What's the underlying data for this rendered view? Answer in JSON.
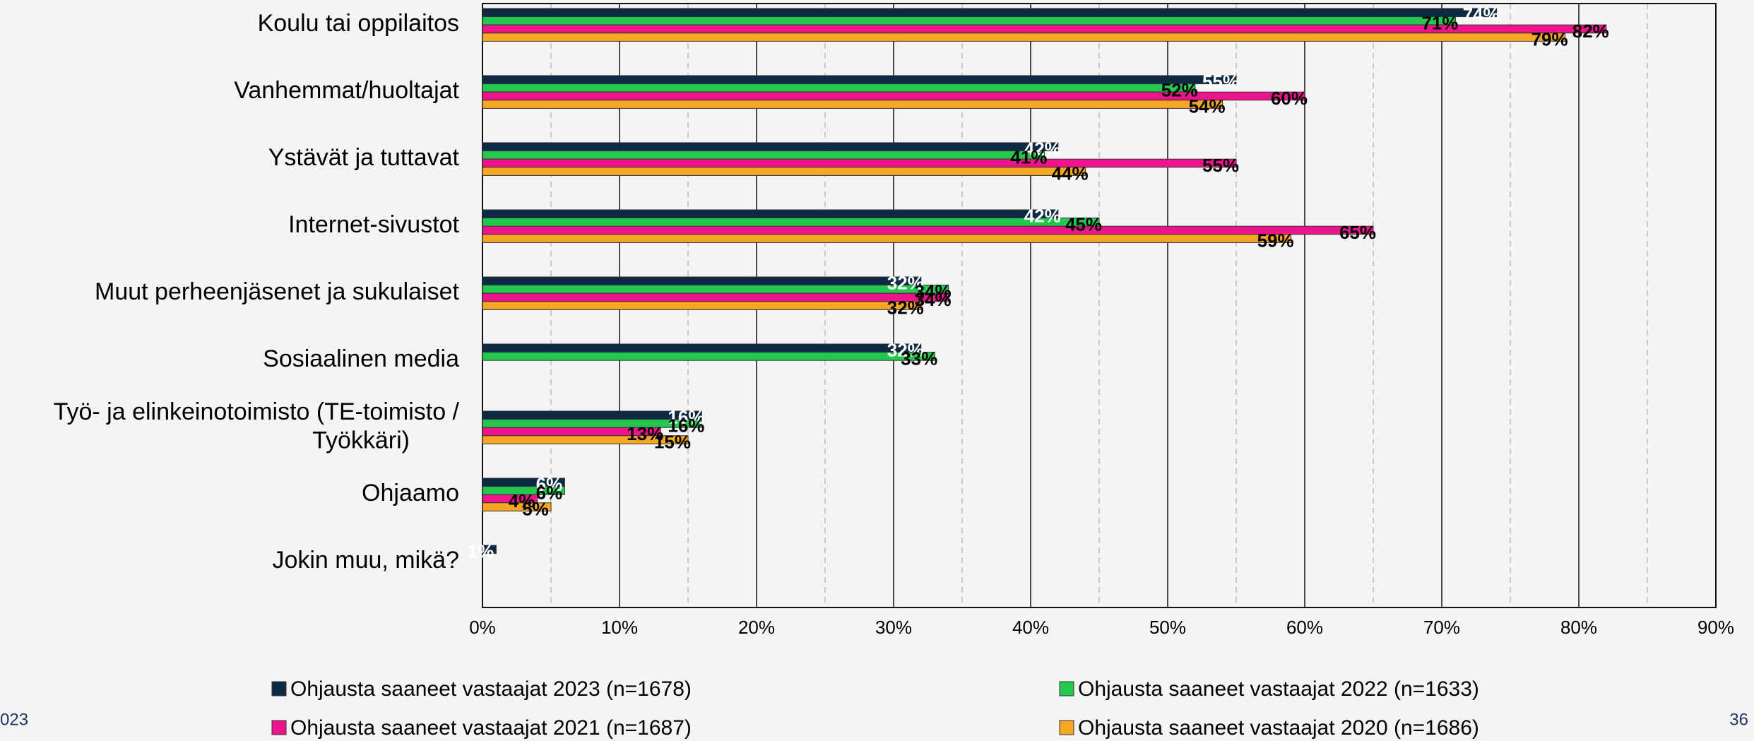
{
  "chart_data": {
    "type": "hbar",
    "categories": [
      "Koulu tai oppilaitos",
      "Vanhemmat/huoltajat",
      "Ystävät ja tuttavat",
      "Internet-sivustot",
      "Muut perheenjäsenet ja sukulaiset",
      "Sosiaalinen media",
      "Työ- ja elinkeinotoimisto (TE-toimisto / Työkkäri)",
      "Ohjaamo",
      "Jokin muu, mikä?"
    ],
    "series": [
      {
        "name": "Ohjausta saaneet vastaajat 2023 (n=1678)",
        "color": "#0d2a45",
        "label_color": "#ffffff",
        "values": [
          74,
          55,
          42,
          42,
          32,
          32,
          16,
          6,
          1
        ],
        "value_labels": [
          "74%",
          "55%",
          "42%",
          "42%",
          "32%",
          "32%",
          "16%",
          "6%",
          "1%"
        ]
      },
      {
        "name": "Ohjausta saaneet vastaajat 2022 (n=1633)",
        "color": "#22c94e",
        "label_color": "#000000",
        "values": [
          71,
          52,
          41,
          45,
          34,
          33,
          16,
          6,
          null
        ],
        "value_labels": [
          "71%",
          "52%",
          "41%",
          "45%",
          "34%",
          "33%",
          "16%",
          "6%",
          null
        ]
      },
      {
        "name": "Ohjausta saaneet vastaajat 2021 (n=1687)",
        "color": "#f0148c",
        "label_color": "#000000",
        "values": [
          82,
          60,
          55,
          65,
          34,
          null,
          13,
          4,
          null
        ],
        "value_labels": [
          "82%",
          "60%",
          "55%",
          "65%",
          "34%",
          null,
          "13%",
          "4%",
          null
        ]
      },
      {
        "name": "Ohjausta saaneet vastaajat 2020 (n=1686)",
        "color": "#f5a623",
        "label_color": "#000000",
        "values": [
          79,
          54,
          44,
          59,
          32,
          null,
          15,
          5,
          null
        ],
        "value_labels": [
          "79%",
          "54%",
          "44%",
          "59%",
          "32%",
          null,
          "15%",
          "5%",
          null
        ]
      }
    ],
    "xlim": [
      0,
      90
    ],
    "xticks": [
      {
        "value": 0,
        "label": "0%"
      },
      {
        "value": 10,
        "label": "10%"
      },
      {
        "value": 20,
        "label": "20%"
      },
      {
        "value": 30,
        "label": "30%"
      },
      {
        "value": 40,
        "label": "40%"
      },
      {
        "value": 50,
        "label": "50%"
      },
      {
        "value": 60,
        "label": "60%"
      },
      {
        "value": 70,
        "label": "70%"
      },
      {
        "value": 80,
        "label": "80%"
      },
      {
        "value": 90,
        "label": "90%"
      }
    ],
    "minor_xticks": [
      5,
      15,
      25,
      35,
      45,
      55,
      65,
      75,
      85
    ],
    "grid": true,
    "legend": "bottom"
  },
  "footer_left": "023",
  "page_number": "36"
}
